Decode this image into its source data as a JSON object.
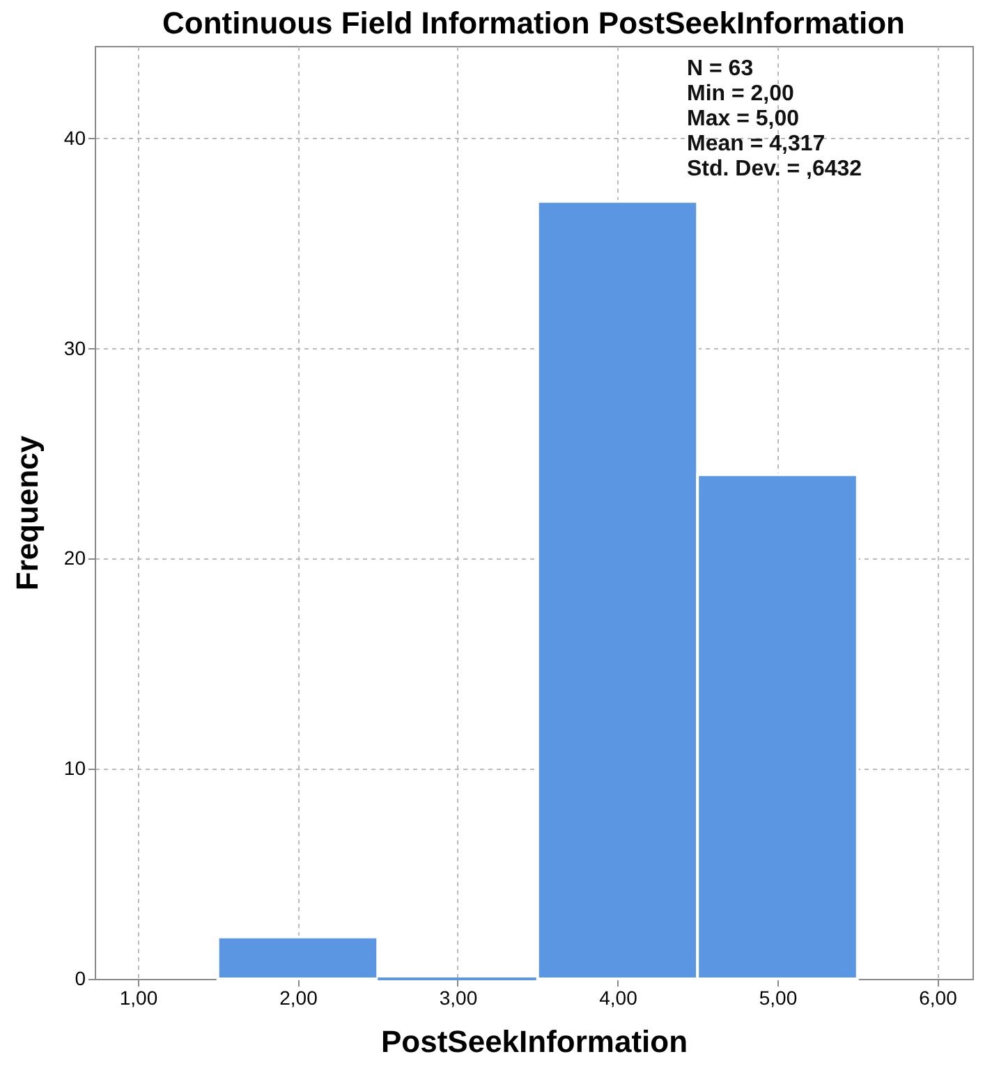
{
  "chart_data": {
    "type": "histogram",
    "title": "Continuous Field Information PostSeekInformation",
    "xlabel": "PostSeekInformation",
    "ylabel": "Frequency",
    "bins": [
      1.5,
      2.5,
      3.5,
      4.5,
      5.5
    ],
    "values": [
      2,
      0,
      37,
      24
    ],
    "color": "#5b96e3",
    "xlim": [
      0.73,
      6.22
    ],
    "xticks": [
      {
        "value": 1,
        "label": "1,00"
      },
      {
        "value": 2,
        "label": "2,00"
      },
      {
        "value": 3,
        "label": "3,00"
      },
      {
        "value": 4,
        "label": "4,00"
      },
      {
        "value": 5,
        "label": "5,00"
      },
      {
        "value": 6,
        "label": "6,00"
      }
    ],
    "ylim": [
      0,
      44.4
    ],
    "yticks": [
      0,
      10,
      20,
      30,
      40
    ],
    "grid": true,
    "annotations": [
      "N = 63",
      "Min = 2,00",
      "Max = 5,00",
      "Mean = 4,317",
      "Std. Dev. = ,6432"
    ]
  }
}
